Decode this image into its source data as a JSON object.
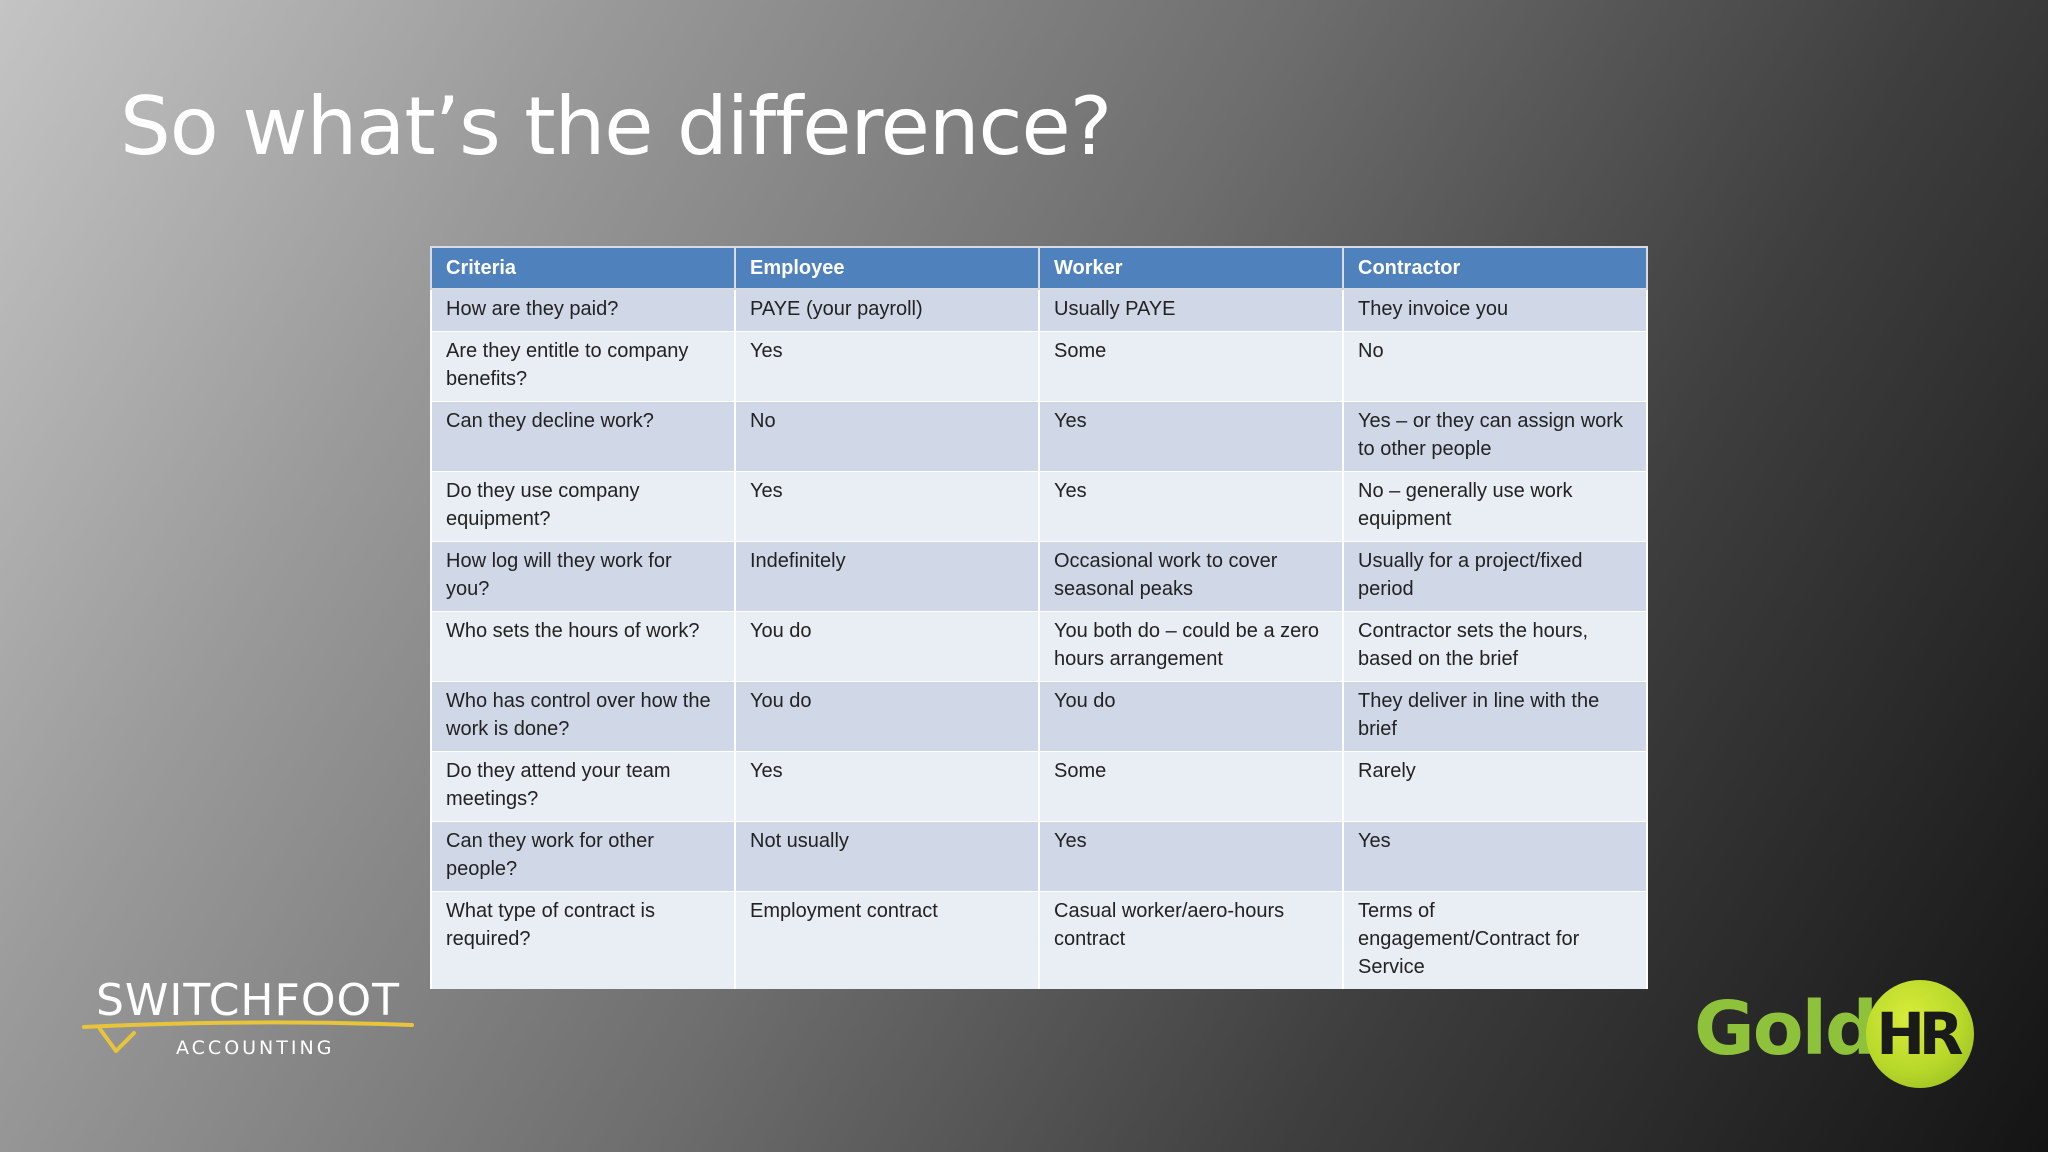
{
  "title": "So what’s the difference?",
  "table": {
    "headers": [
      "Criteria",
      "Employee",
      "Worker",
      "Contractor"
    ],
    "rows": [
      [
        "How are they paid?",
        "PAYE (your payroll)",
        "Usually PAYE",
        "They invoice you"
      ],
      [
        "Are they entitle to company benefits?",
        "Yes",
        "Some",
        "No"
      ],
      [
        "Can they decline work?",
        "No",
        "Yes",
        "Yes – or they can assign work to other people"
      ],
      [
        "Do they use company equipment?",
        "Yes",
        "Yes",
        "No – generally use work equipment"
      ],
      [
        "How log will they work for you?",
        "Indefinitely",
        "Occasional work to cover seasonal peaks",
        "Usually for a project/fixed period"
      ],
      [
        "Who sets the hours of work?",
        "You do",
        "You both do – could be a zero hours arrangement",
        "Contractor sets the hours, based on the brief"
      ],
      [
        "Who has control over how the work is done?",
        "You do",
        "You do",
        "They deliver in line with the brief"
      ],
      [
        "Do they attend your team meetings?",
        "Yes",
        "Some",
        "Rarely"
      ],
      [
        "Can they work for other people?",
        "Not usually",
        "Yes",
        "Yes"
      ],
      [
        "What type of contract is required?",
        "Employment contract",
        "Casual worker/aero-hours contract",
        "Terms of engagement/Contract for Service"
      ]
    ]
  },
  "logos": {
    "left": {
      "name": "SWITCHFOOT",
      "sub": "ACCOUNTING"
    },
    "right": {
      "word": "Gold",
      "badge": "HR"
    }
  },
  "colors": {
    "header": "#4f81bd",
    "row_odd": "#d0d8e8",
    "row_even": "#e9edf4",
    "logo_green": "#8fc23b",
    "swoosh_yellow": "#e8c43a"
  }
}
